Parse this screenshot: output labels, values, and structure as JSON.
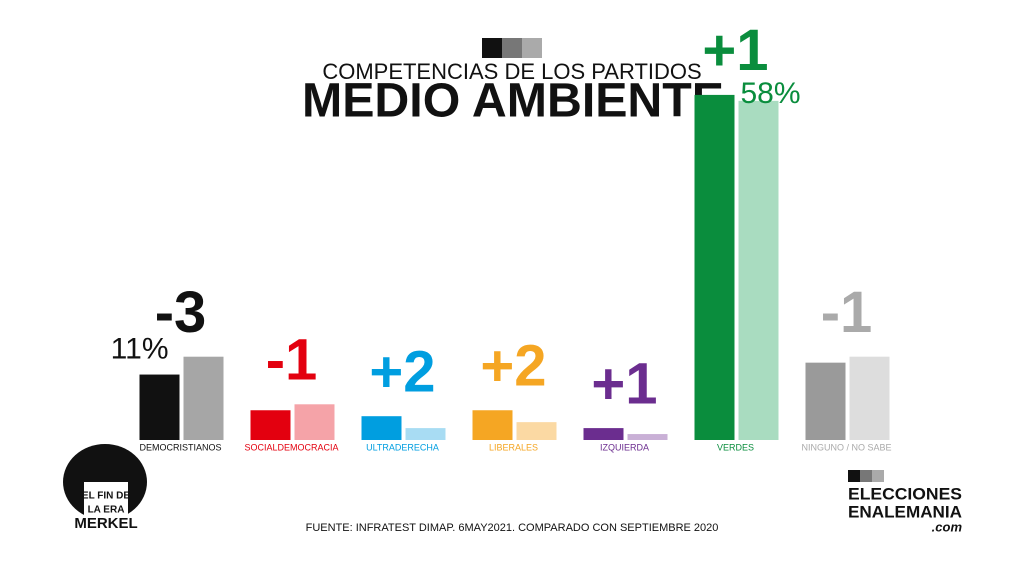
{
  "chart_data": {
    "type": "paired-bar",
    "subtitle": "COMPETENCIAS DE LOS PARTIDOS",
    "title": "MEDIO AMBIENTE",
    "source": "FUENTE: INFRATEST DIMAP. 6MAY2021. COMPARADO CON SEPTIEMBRE 2020",
    "categories": [
      "DEMOCRISTIANOS",
      "SOCIALDEMOCRACIA",
      "ULTRADERECHA",
      "LIBERALES",
      "IZQUIERDA",
      "VERDES",
      "NINGUNO / NO SABE"
    ],
    "values": [
      11,
      5,
      4,
      5,
      2,
      58,
      13
    ],
    "value_labels": [
      "11%",
      null,
      null,
      null,
      null,
      "58%",
      null
    ],
    "previous_values": [
      14,
      6,
      2,
      3,
      1,
      57,
      14
    ],
    "changes": [
      "-3",
      "-1",
      "+2",
      "+2",
      "+1",
      "+1",
      "-1"
    ],
    "colors": [
      "#111111",
      "#e3000f",
      "#009ee0",
      "#f5a623",
      "#6b2d8f",
      "#0a8d3d",
      "#9a9a9a"
    ],
    "previous_colors": [
      "#a6a6a6",
      "#f5a3a8",
      "#a8dcf3",
      "#fbd9a3",
      "#c9b0d6",
      "#a9dcc0",
      "#dddddd"
    ],
    "label_colors": [
      "#111111",
      "#e3000f",
      "#009ee0",
      "#f5a623",
      "#6b2d8f",
      "#0a8d3d",
      "#aaaaaa"
    ],
    "ylim": [
      0,
      60
    ]
  },
  "logos": {
    "left": [
      "EL FIN DE",
      "LA ERA",
      "MERKEL"
    ],
    "right": [
      "ELECCIONES",
      "ENALEMANIA",
      ".com"
    ]
  }
}
